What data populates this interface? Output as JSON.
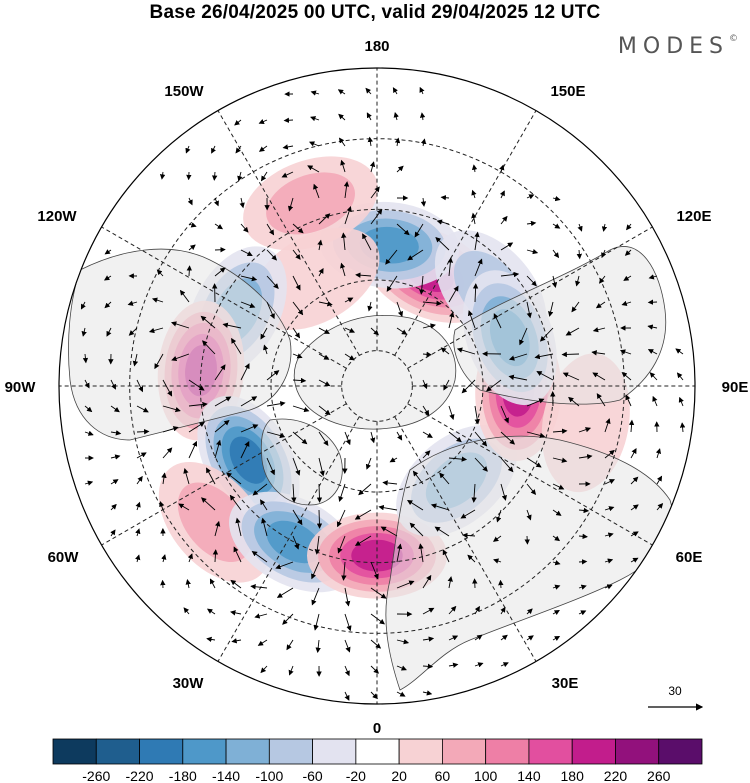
{
  "title": "Base 26/04/2025 00 UTC, valid 29/04/2025 12 UTC",
  "brand": "MODES",
  "brand_mark": "©",
  "longitude_labels": {
    "lon_180": "180",
    "lon_150E": "150E",
    "lon_120E": "120E",
    "lon_90E": "90E",
    "lon_60E": "60E",
    "lon_30E": "30E",
    "lon_0": "0",
    "lon_30W": "30W",
    "lon_60W": "60W",
    "lon_90W": "90W",
    "lon_120W": "120W",
    "lon_150W": "150W"
  },
  "colorbar": {
    "ticks": [
      "-260",
      "-220",
      "-180",
      "-140",
      "-100",
      "-60",
      "-20",
      "20",
      "60",
      "100",
      "140",
      "180",
      "220",
      "260"
    ],
    "colors": [
      "#0d3a5e",
      "#1f5e8e",
      "#2f7ab4",
      "#4e98c9",
      "#7fb0d6",
      "#b6c8e2",
      "#e3e3f0",
      "#ffffff",
      "#f7d2d4",
      "#f3a9b8",
      "#ee7fa6",
      "#e24f9f",
      "#c21d8c",
      "#92117c",
      "#5a0d6a"
    ]
  },
  "reference_vector": {
    "value": "30"
  },
  "anomalies": [
    {
      "name": "pos-east-siberia",
      "lon": 155,
      "lat": 55,
      "value": 200
    },
    {
      "name": "neg-kamchatka",
      "lon": 175,
      "lat": 50,
      "value": -150
    },
    {
      "name": "neg-east-asia",
      "lon": 130,
      "lat": 48,
      "value": -90
    },
    {
      "name": "pos-north-pacific",
      "lon": -160,
      "lat": 35,
      "value": 70
    },
    {
      "name": "pos-bering",
      "lon": -150,
      "lat": 55,
      "value": 50
    },
    {
      "name": "neg-alaska",
      "lon": -118,
      "lat": 45,
      "value": -120
    },
    {
      "name": "pos-canada",
      "lon": -95,
      "lat": 40,
      "value": 190
    },
    {
      "name": "neg-atlantic-west",
      "lon": -60,
      "lat": 48,
      "value": -190
    },
    {
      "name": "pos-atlantic",
      "lon": -50,
      "lat": 30,
      "value": 70
    },
    {
      "name": "neg-atlantic-east",
      "lon": -28,
      "lat": 40,
      "value": -160
    },
    {
      "name": "pos-europe",
      "lon": 0,
      "lat": 42,
      "value": 210
    },
    {
      "name": "neg-russia",
      "lon": 40,
      "lat": 55,
      "value": -110
    },
    {
      "name": "pos-siberia",
      "lon": 88,
      "lat": 50,
      "value": 200
    },
    {
      "name": "neg-central-asia",
      "lon": 110,
      "lat": 50,
      "value": -150
    },
    {
      "name": "pos-asia-south",
      "lon": 80,
      "lat": 30,
      "value": 40
    }
  ]
}
